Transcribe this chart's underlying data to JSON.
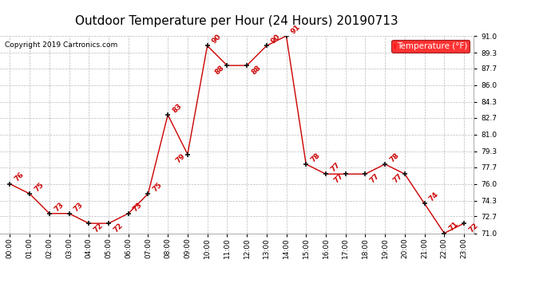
{
  "title": "Outdoor Temperature per Hour (24 Hours) 20190713",
  "copyright": "Copyright 2019 Cartronics.com",
  "legend_label": "Temperature (°F)",
  "x_labels": [
    "00:00",
    "01:00",
    "02:00",
    "03:00",
    "04:00",
    "05:00",
    "06:00",
    "07:00",
    "08:00",
    "09:00",
    "10:00",
    "11:00",
    "12:00",
    "13:00",
    "14:00",
    "15:00",
    "16:00",
    "17:00",
    "18:00",
    "19:00",
    "20:00",
    "21:00",
    "22:00",
    "23:00"
  ],
  "temps": [
    76,
    75,
    73,
    73,
    72,
    72,
    73,
    75,
    83,
    79,
    90,
    88,
    88,
    90,
    91,
    78,
    77,
    77,
    77,
    78,
    77,
    74,
    71,
    72
  ],
  "ylim": [
    71.0,
    91.0
  ],
  "yticks": [
    71.0,
    72.7,
    74.3,
    76.0,
    77.7,
    79.3,
    81.0,
    82.7,
    84.3,
    86.0,
    87.7,
    89.3,
    91.0
  ],
  "line_color": "#cc0000",
  "bg_color": "#ffffff",
  "grid_color": "#bbbbbb",
  "title_fontsize": 11,
  "label_fontsize": 6.5,
  "annotation_fontsize": 6.5,
  "copyright_fontsize": 6.5,
  "legend_fontsize": 7.5
}
